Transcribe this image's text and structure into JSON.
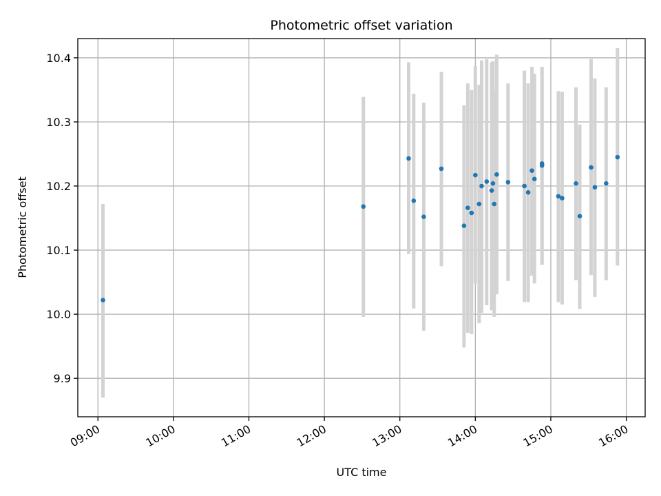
{
  "chart_data": {
    "type": "scatter",
    "title": "Photometric offset variation",
    "xlabel": "UTC time",
    "ylabel": "Photometric offset",
    "x_axis_kind": "time",
    "xlim": [
      "08:44",
      "16:15"
    ],
    "ylim": [
      9.84,
      10.43
    ],
    "grid": true,
    "x_ticks": [
      "09:00",
      "10:00",
      "11:00",
      "12:00",
      "13:00",
      "14:00",
      "15:00",
      "16:00"
    ],
    "y_ticks": [
      "9.9",
      "10.0",
      "10.1",
      "10.2",
      "10.3",
      "10.4"
    ],
    "colors": {
      "marker": "#1f77b4",
      "errorbar": "#d3d3d3",
      "grid": "#b0b0b0"
    },
    "series": [
      {
        "points": [
          {
            "x": "09:04",
            "y": 10.022,
            "ylo": 9.87,
            "yhi": 10.172
          },
          {
            "x": "12:31",
            "y": 10.168,
            "ylo": 9.996,
            "yhi": 10.339
          },
          {
            "x": "13:07",
            "y": 10.243,
            "ylo": 10.094,
            "yhi": 10.393
          },
          {
            "x": "13:11",
            "y": 10.177,
            "ylo": 10.009,
            "yhi": 10.344
          },
          {
            "x": "13:19",
            "y": 10.152,
            "ylo": 9.974,
            "yhi": 10.33
          },
          {
            "x": "13:33",
            "y": 10.227,
            "ylo": 10.075,
            "yhi": 10.378
          },
          {
            "x": "13:51",
            "y": 10.138,
            "ylo": 9.948,
            "yhi": 10.326
          },
          {
            "x": "13:54",
            "y": 10.166,
            "ylo": 9.971,
            "yhi": 10.36
          },
          {
            "x": "13:57",
            "y": 10.158,
            "ylo": 9.969,
            "yhi": 10.35
          },
          {
            "x": "14:00",
            "y": 10.217,
            "ylo": 10.048,
            "yhi": 10.387
          },
          {
            "x": "14:03",
            "y": 10.172,
            "ylo": 9.986,
            "yhi": 10.358
          },
          {
            "x": "14:05",
            "y": 10.2,
            "ylo": 10.002,
            "yhi": 10.396
          },
          {
            "x": "14:09",
            "y": 10.207,
            "ylo": 10.014,
            "yhi": 10.398
          },
          {
            "x": "14:13",
            "y": 10.193,
            "ylo": 10.006,
            "yhi": 10.393
          },
          {
            "x": "14:14",
            "y": 10.204,
            "ylo": 10.012,
            "yhi": 10.395
          },
          {
            "x": "14:15",
            "y": 10.172,
            "ylo": 9.996,
            "yhi": 10.348
          },
          {
            "x": "14:17",
            "y": 10.218,
            "ylo": 10.031,
            "yhi": 10.405
          },
          {
            "x": "14:26",
            "y": 10.206,
            "ylo": 10.052,
            "yhi": 10.36
          },
          {
            "x": "14:39",
            "y": 10.2,
            "ylo": 10.019,
            "yhi": 10.38
          },
          {
            "x": "14:42",
            "y": 10.19,
            "ylo": 10.019,
            "yhi": 10.36
          },
          {
            "x": "14:45",
            "y": 10.224,
            "ylo": 10.06,
            "yhi": 10.386
          },
          {
            "x": "14:47",
            "y": 10.211,
            "ylo": 10.048,
            "yhi": 10.375
          },
          {
            "x": "14:53",
            "y": 10.235,
            "ylo": 10.077,
            "yhi": 10.386
          },
          {
            "x": "14:53",
            "y": 10.232,
            "ylo": 10.077,
            "yhi": 10.386
          },
          {
            "x": "15:06",
            "y": 10.184,
            "ylo": 10.019,
            "yhi": 10.348
          },
          {
            "x": "15:09",
            "y": 10.181,
            "ylo": 10.015,
            "yhi": 10.347
          },
          {
            "x": "15:20",
            "y": 10.204,
            "ylo": 10.053,
            "yhi": 10.354
          },
          {
            "x": "15:23",
            "y": 10.153,
            "ylo": 10.008,
            "yhi": 10.296
          },
          {
            "x": "15:32",
            "y": 10.229,
            "ylo": 10.061,
            "yhi": 10.398
          },
          {
            "x": "15:35",
            "y": 10.198,
            "ylo": 10.027,
            "yhi": 10.368
          },
          {
            "x": "15:44",
            "y": 10.204,
            "ylo": 10.053,
            "yhi": 10.354
          },
          {
            "x": "15:53",
            "y": 10.245,
            "ylo": 10.076,
            "yhi": 10.415
          }
        ]
      }
    ]
  }
}
